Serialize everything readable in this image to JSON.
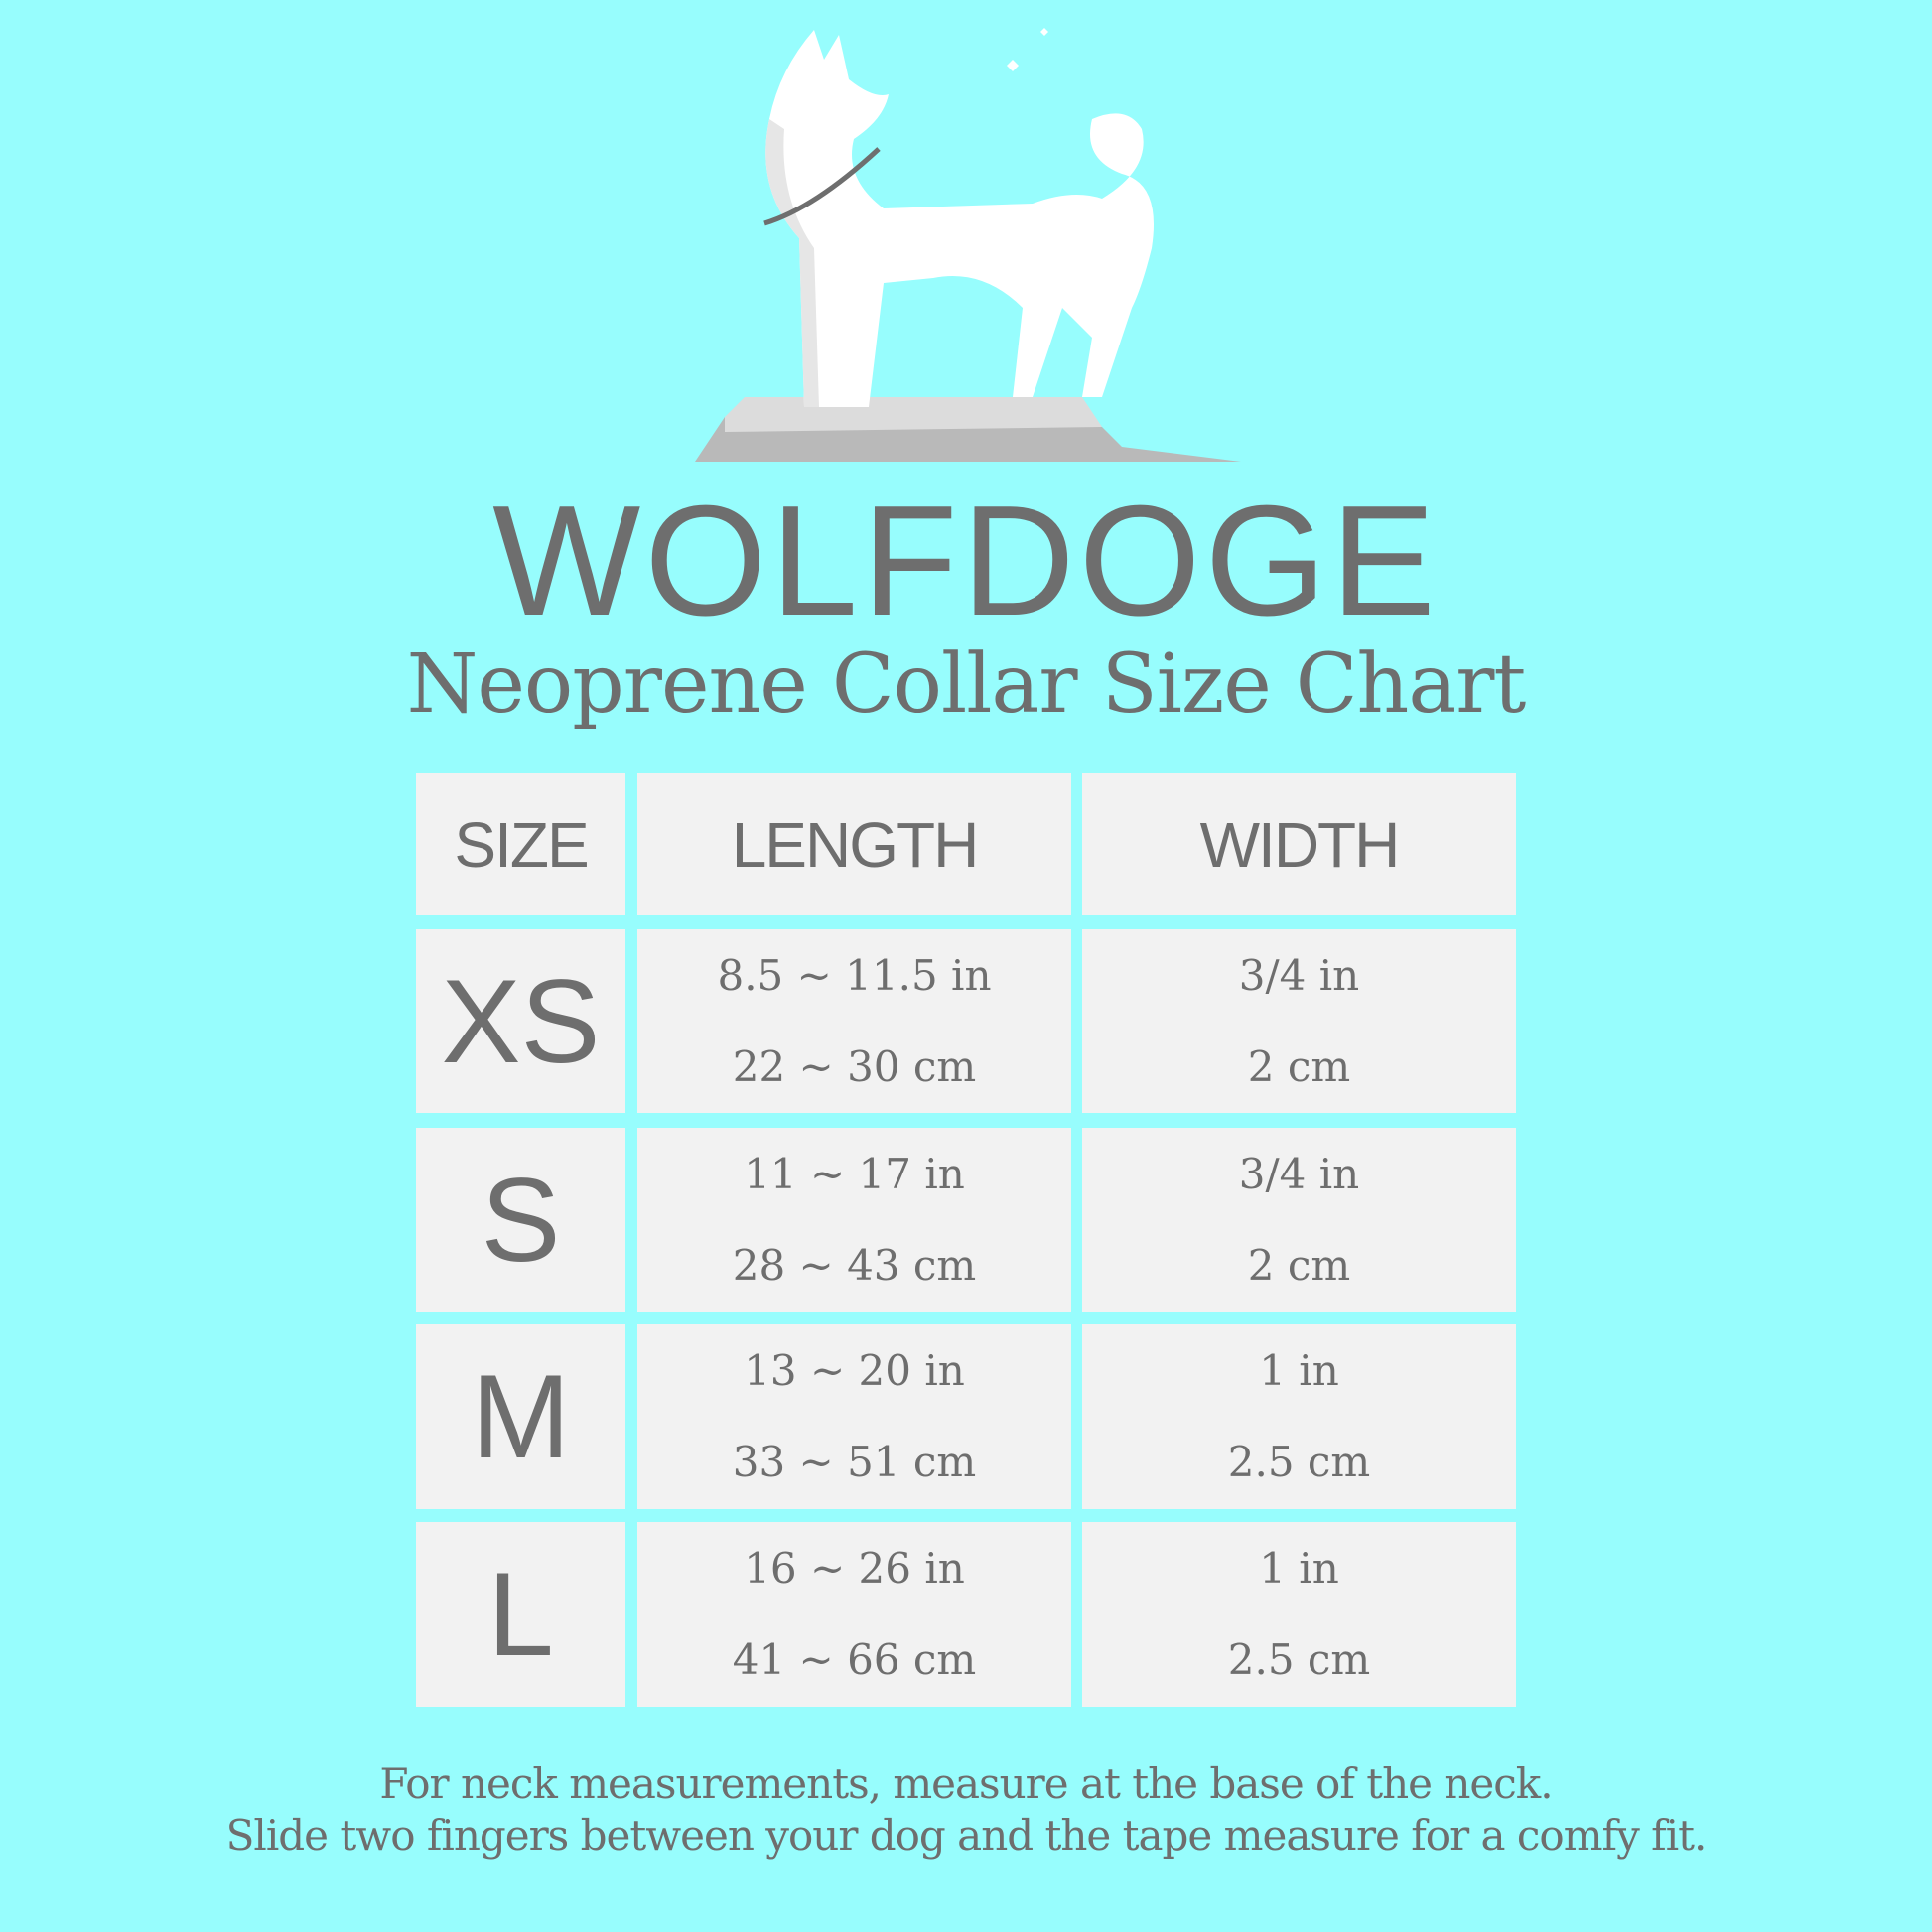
{
  "brand": "WOLFDOGE",
  "subtitle": "Neoprene Collar Size Chart",
  "colors": {
    "background": "#97fdfd",
    "cell": "#f2f2f2",
    "text": "#6e6e6e"
  },
  "table": {
    "headers": [
      "SIZE",
      "LENGTH",
      "WIDTH"
    ],
    "rows": [
      {
        "size": "XS",
        "length_in": "8.5 ~ 11.5 in",
        "length_cm": "22 ~ 30 cm",
        "width_in": "3/4 in",
        "width_cm": "2 cm"
      },
      {
        "size": "S",
        "length_in": "11 ~ 17 in",
        "length_cm": "28 ~ 43 cm",
        "width_in": "3/4 in",
        "width_cm": "2 cm"
      },
      {
        "size": "M",
        "length_in": "13 ~ 20 in",
        "length_cm": "33 ~ 51 cm",
        "width_in": "1 in",
        "width_cm": "2.5 cm"
      },
      {
        "size": "L",
        "length_in": "16 ~ 26 in",
        "length_cm": "41 ~ 66 cm",
        "width_in": "1 in",
        "width_cm": "2.5 cm"
      }
    ]
  },
  "footer": {
    "line1": "For neck measurements, measure at the base of the neck.",
    "line2": "Slide two fingers between your dog and the tape measure for a comfy fit."
  }
}
